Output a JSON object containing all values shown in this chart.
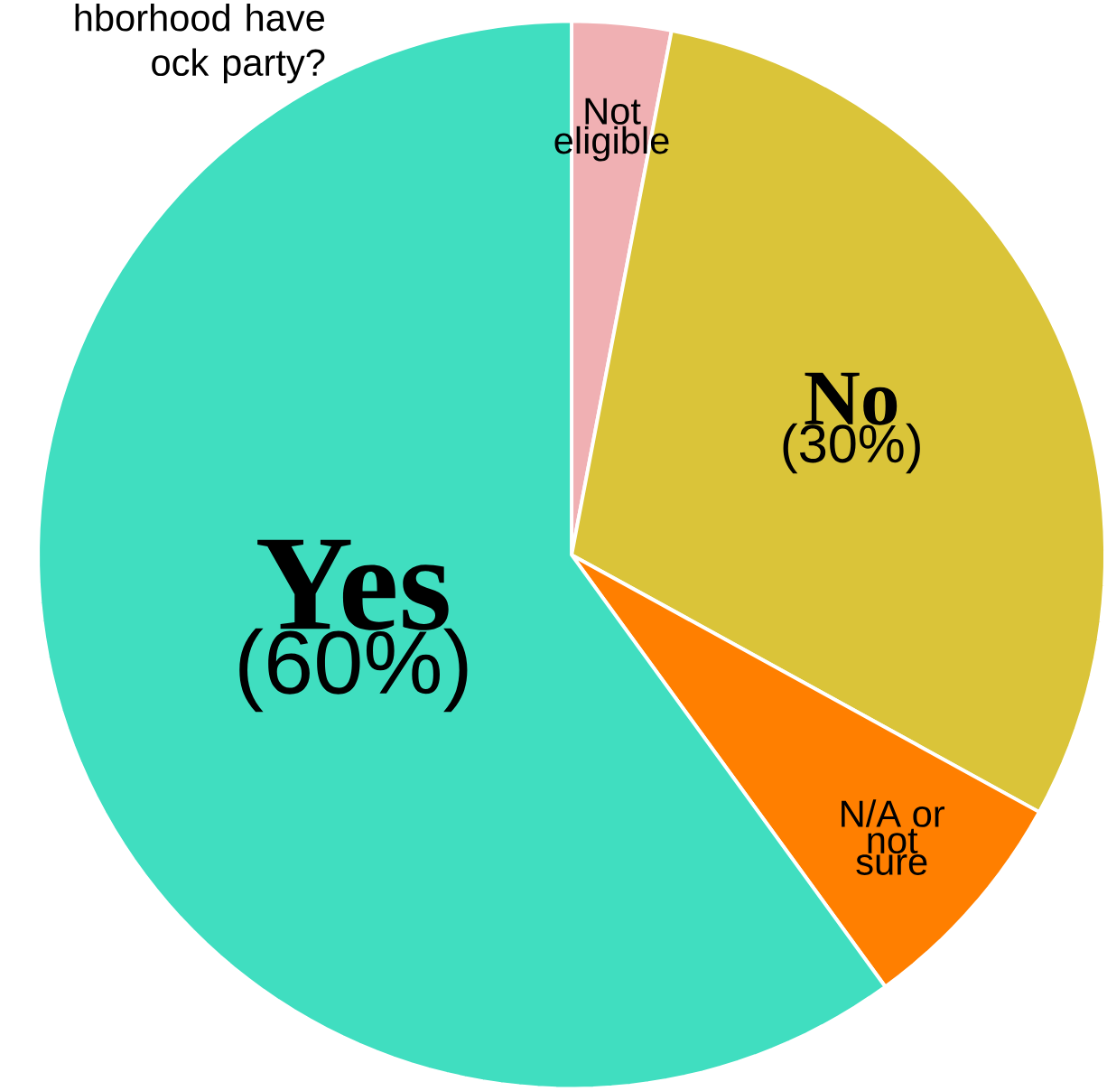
{
  "chart_data": {
    "type": "pie",
    "title": "hborhood have ock party?",
    "categories": [
      "Not eligible",
      "No",
      "N/A or not sure",
      "Yes"
    ],
    "values": [
      3,
      30,
      7,
      60
    ],
    "colors": [
      "#f0b0b3",
      "#dac439",
      "#ff7f00",
      "#40dec0"
    ],
    "value_labels": [
      null,
      "(30%)",
      null,
      "(60%)"
    ]
  }
}
